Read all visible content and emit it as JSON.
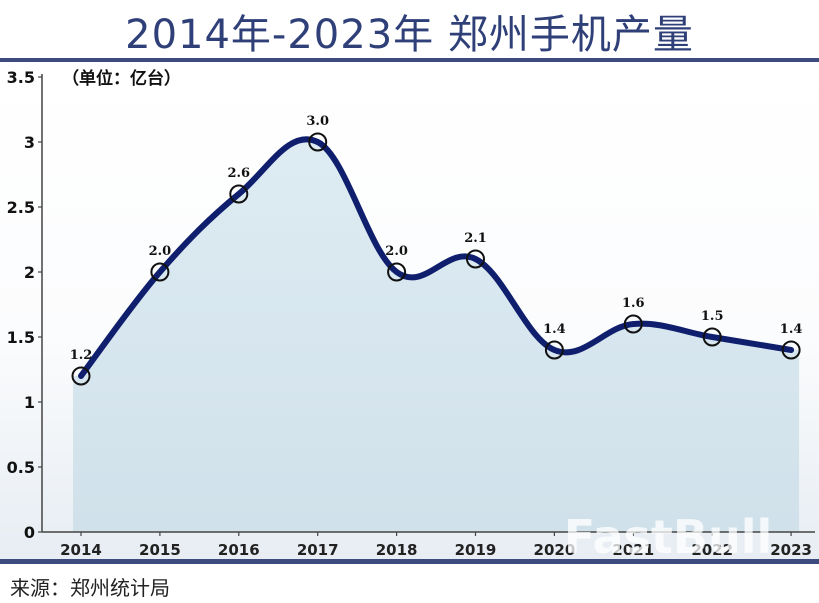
{
  "header": {
    "title": "2014年-2023年 郑州手机产量"
  },
  "footer": {
    "source": "来源：郑州统计局"
  },
  "watermark": "FastBull",
  "colors": {
    "title": "#2f3f78",
    "line": "#0f1f6e",
    "fill": "#d7e8f0",
    "rule": "#3d4b7e"
  },
  "chart_data": {
    "type": "area",
    "title": "2014年-2023年 郑州手机产量",
    "unit_label": "（单位：亿台）",
    "xlabel": "",
    "ylabel": "亿台",
    "categories": [
      "2014",
      "2015",
      "2016",
      "2017",
      "2018",
      "2019",
      "2020",
      "2021",
      "2022",
      "2023"
    ],
    "values": [
      1.2,
      2.0,
      2.6,
      3.0,
      2.0,
      2.1,
      1.4,
      1.6,
      1.5,
      1.4
    ],
    "data_labels": [
      "1.2",
      "2.0",
      "2.6",
      "3.0",
      "2.0",
      "2.1",
      "1.4",
      "1.6",
      "1.5",
      "1.4"
    ],
    "yticks": [
      "0",
      "0.5",
      "1",
      "1.5",
      "2",
      "2.5",
      "3",
      "3.5"
    ],
    "ylim": [
      0,
      3.5
    ],
    "grid": false,
    "legend": "none",
    "smooth": true,
    "markers": "hollow circle"
  }
}
